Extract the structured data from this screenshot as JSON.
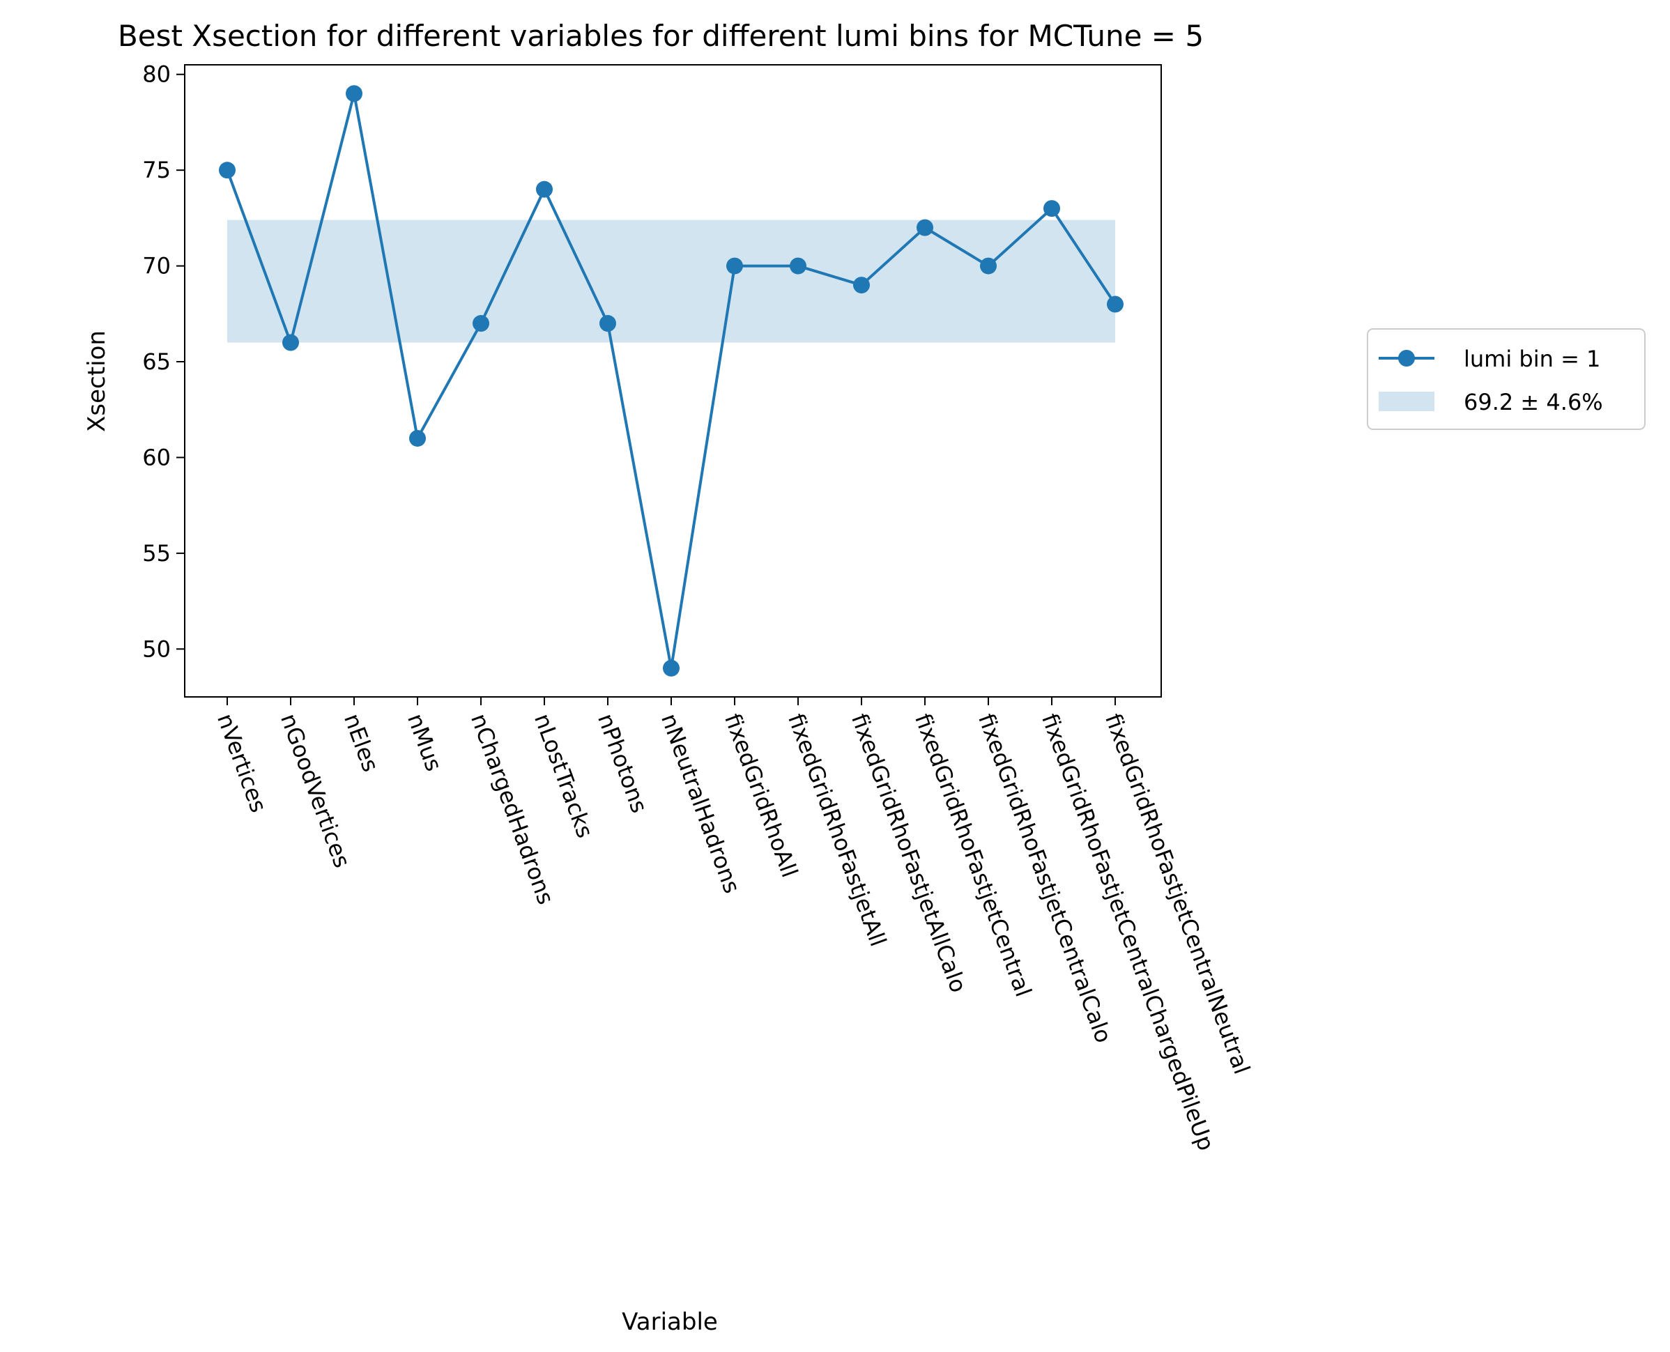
{
  "chart_data": {
    "type": "line",
    "title": "Best Xsection for different variables for different lumi bins for MCTune = 5",
    "xlabel": "Variable",
    "ylabel": "Xsection",
    "categories": [
      "nVertices",
      "nGoodVertices",
      "nEles",
      "nMus",
      "nChargedHadrons",
      "nLostTracks",
      "nPhotons",
      "nNeutralHadrons",
      "fixedGridRhoAll",
      "fixedGridRhoFastjetAll",
      "fixedGridRhoFastjetAllCalo",
      "fixedGridRhoFastjetCentral",
      "fixedGridRhoFastjetCentralCalo",
      "fixedGridRhoFastjetCentralChargedPileUp",
      "fixedGridRhoFastjetCentralNeutral"
    ],
    "series": [
      {
        "name": "lumi bin = 1",
        "values": [
          75,
          66,
          79,
          61,
          67,
          74,
          67,
          49,
          70,
          70,
          69,
          72,
          70,
          73,
          68
        ],
        "color": "#1f77b4"
      }
    ],
    "band": {
      "label": "69.2 ± 4.6%",
      "low": 66.0,
      "high": 72.4,
      "color": "#1f77b4",
      "opacity": 0.2
    },
    "ylim": [
      47.5,
      80.5
    ],
    "yticks": [
      50,
      55,
      60,
      65,
      70,
      75,
      80
    ],
    "ytick_labels": [
      "50",
      "55",
      "60",
      "65",
      "70",
      "75",
      "80"
    ],
    "xtick_rotation_deg": -70,
    "grid": false,
    "legend": {
      "placement": "outside-right",
      "entries": [
        "lumi bin = 1",
        "69.2 ± 4.6%"
      ]
    }
  }
}
